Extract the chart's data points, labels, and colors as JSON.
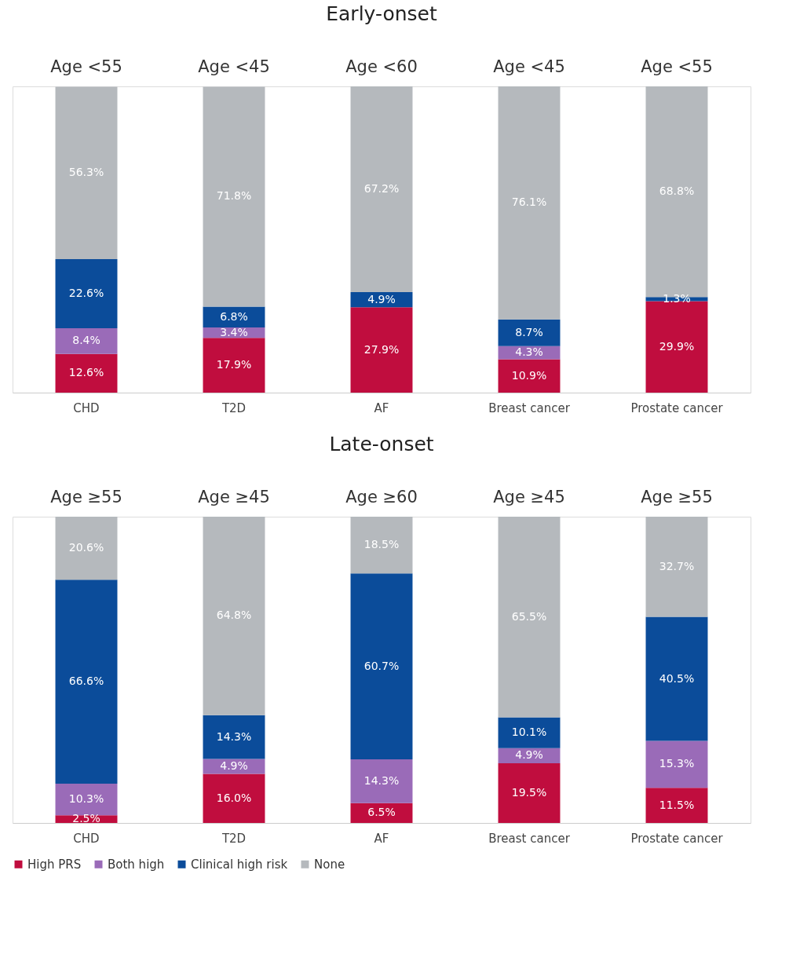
{
  "chart_data": [
    {
      "type": "bar",
      "title": "Early-onset",
      "stacked": true,
      "tick_labels": "x",
      "legend": false,
      "grid": false,
      "categories": [
        "CHD",
        "T2D",
        "AF",
        "Breast cancer",
        "Prostate cancer"
      ],
      "annotations": [
        "Age <55",
        "Age <45",
        "Age <60",
        "Age <45",
        "Age <55"
      ],
      "series": [
        {
          "color": "#c00d3e",
          "values": [
            12.6,
            17.9,
            27.9,
            10.9,
            29.9
          ],
          "value_labels": [
            "12.6%",
            "17.9%",
            "27.9%",
            "10.9%",
            "29.9%"
          ]
        },
        {
          "color": "#9a6bb8",
          "values": [
            8.4,
            3.4,
            0,
            4.3,
            0
          ],
          "value_labels": [
            "8.4%",
            "3.4%",
            null,
            "4.3%",
            null
          ]
        },
        {
          "color": "#0b4c9a",
          "values": [
            22.6,
            6.8,
            4.9,
            8.7,
            1.3
          ],
          "value_labels": [
            "22.6%",
            "6.8%",
            "4.9%",
            "8.7%",
            "1.3%"
          ]
        },
        {
          "color": "#b5b9bd",
          "values": [
            56.3,
            71.8,
            67.2,
            76.1,
            68.8
          ],
          "value_labels": [
            "56.3%",
            "71.8%",
            "67.2%",
            "76.1%",
            "68.8%"
          ]
        }
      ]
    },
    {
      "type": "bar",
      "title": "Late-onset",
      "stacked": true,
      "tick_labels": "x",
      "legend": "bottom",
      "grid": false,
      "categories": [
        "CHD",
        "T2D",
        "AF",
        "Breast cancer",
        "Prostate cancer"
      ],
      "annotations": [
        "Age ≥55",
        "Age ≥45",
        "Age ≥60",
        "Age ≥45",
        "Age ≥55"
      ],
      "series": [
        {
          "name": "High PRS",
          "color": "#c00d3e",
          "values": [
            2.5,
            16.0,
            6.5,
            19.5,
            11.5
          ],
          "value_labels": [
            "2.5%",
            "16.0%",
            "6.5%",
            "19.5%",
            "11.5%"
          ]
        },
        {
          "name": "Both high",
          "color": "#9a6bb8",
          "values": [
            10.3,
            4.9,
            14.3,
            4.9,
            15.3
          ],
          "value_labels": [
            "10.3%",
            "4.9%",
            "14.3%",
            "4.9%",
            "15.3%"
          ]
        },
        {
          "name": "Clinical high risk",
          "color": "#0b4c9a",
          "values": [
            66.6,
            14.3,
            60.7,
            10.1,
            40.5
          ],
          "value_labels": [
            "66.6%",
            "14.3%",
            "60.7%",
            "10.1%",
            "40.5%"
          ]
        },
        {
          "name": "None",
          "color": "#b5b9bd",
          "values": [
            20.6,
            64.8,
            18.5,
            65.5,
            32.7
          ],
          "value_labels": [
            "20.6%",
            "64.8%",
            "18.5%",
            "65.5%",
            "32.7%"
          ]
        }
      ]
    }
  ]
}
